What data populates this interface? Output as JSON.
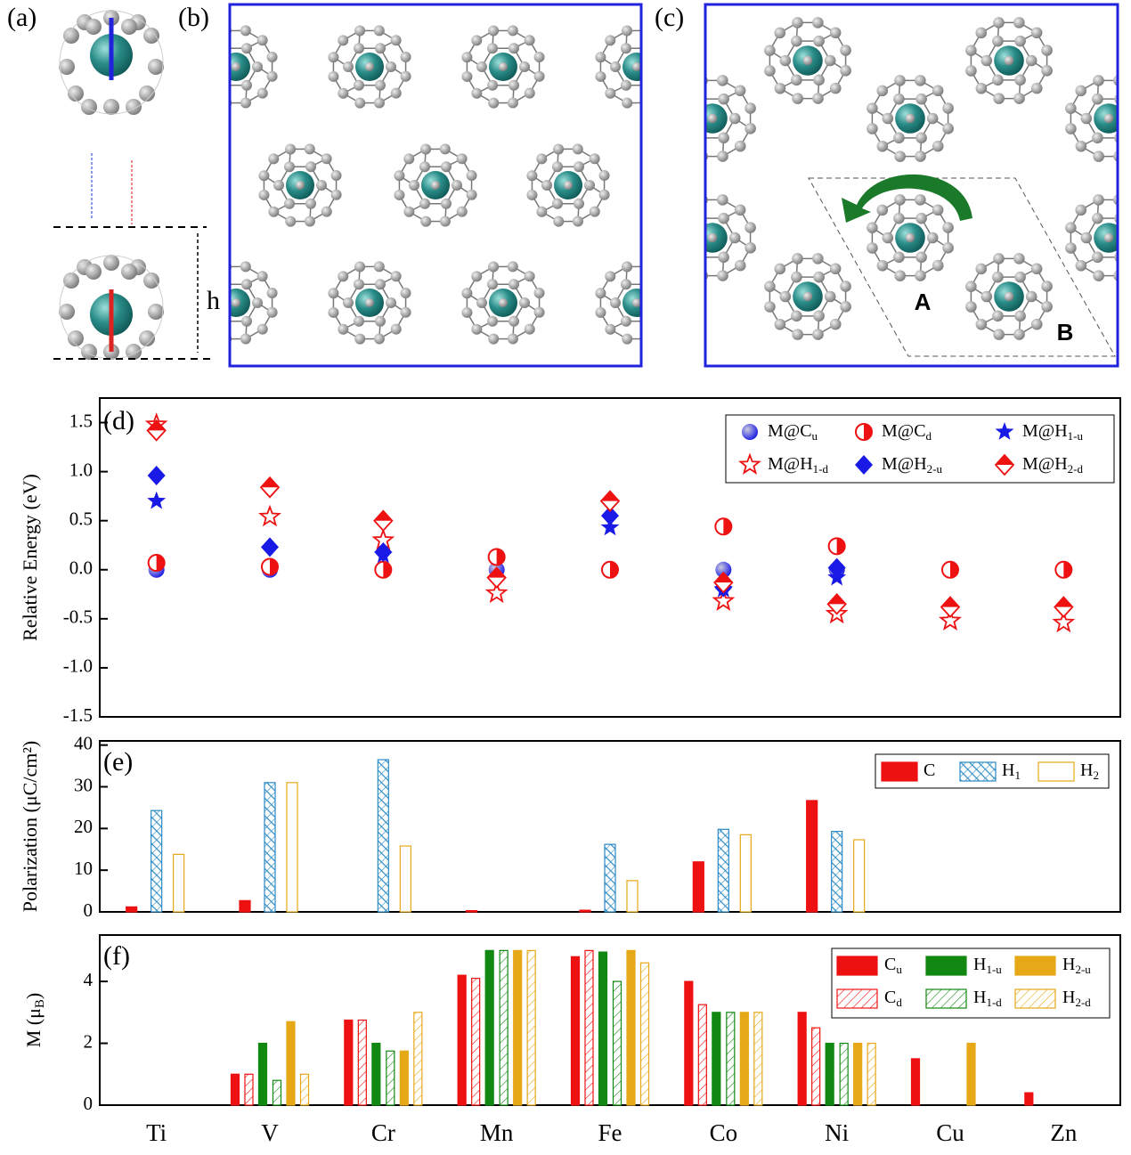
{
  "structures": {
    "labels": [
      "(a)",
      "(b)",
      "(c)"
    ],
    "height_label": "h",
    "site_labels": [
      "A",
      "B"
    ]
  },
  "chart_data": [
    {
      "type": "scatter",
      "panel_label": "(d)",
      "ylabel": "Relative Energy (eV)",
      "ylim": [
        -1.5,
        1.75
      ],
      "yticks": [
        -1.5,
        {
          "value": -1,
          "label": "-1.0"
        },
        -0.5,
        {
          "value": 0,
          "label": "0.0"
        },
        0.5,
        {
          "value": 1,
          "label": "1.0"
        },
        1.5
      ],
      "series": [
        {
          "name": "M@C",
          "subscript": "u",
          "color": "#1a1ae6",
          "marker": "sphere",
          "values": [
            0,
            0,
            null,
            0,
            null,
            0,
            0,
            null,
            null
          ]
        },
        {
          "name": "M@C",
          "subscript": "d",
          "color": "#ee1111",
          "marker": "half-circle",
          "values": [
            0.07,
            0.03,
            0,
            0.13,
            0,
            0.44,
            0.24,
            0,
            0
          ]
        },
        {
          "name": "M@H",
          "subscript": "1-u",
          "color": "#1a1ae6",
          "marker": "star",
          "values": [
            0.7,
            null,
            0.15,
            null,
            0.43,
            -0.2,
            -0.08,
            null,
            null
          ]
        },
        {
          "name": "M@H",
          "subscript": "1-d",
          "color": "#ee1111",
          "marker": "open-star",
          "values": [
            1.48,
            0.54,
            0.3,
            -0.24,
            null,
            -0.32,
            -0.45,
            -0.52,
            -0.54
          ]
        },
        {
          "name": "M@H",
          "subscript": "2-u",
          "color": "#1a1ae6",
          "marker": "diamond",
          "values": [
            0.96,
            0.23,
            0.18,
            null,
            0.55,
            -0.18,
            0.02,
            null,
            null
          ]
        },
        {
          "name": "M@H",
          "subscript": "2-d",
          "color": "#ee1111",
          "marker": "half-diamond",
          "values": [
            1.42,
            0.84,
            0.5,
            -0.08,
            0.7,
            -0.13,
            -0.35,
            -0.38,
            -0.38
          ]
        }
      ]
    },
    {
      "type": "bar",
      "panel_label": "(e)",
      "ylabel": "Polarization (μC/cm²)",
      "ylim": [
        0,
        41
      ],
      "yticks": [
        0,
        10,
        20,
        30,
        40
      ],
      "series": [
        {
          "name": "C",
          "color": "#ee1111",
          "style": "solid",
          "values": [
            1.2,
            2.7,
            0,
            0.3,
            0.4,
            12,
            26.7,
            0,
            0
          ]
        },
        {
          "name": "H",
          "subscript": "1",
          "color": "#2b8ac4",
          "style": "crosshatch",
          "values": [
            24.3,
            31,
            36.5,
            0,
            16.2,
            19.8,
            19.3,
            0,
            0
          ]
        },
        {
          "name": "H",
          "subscript": "2",
          "color": "#e6a817",
          "style": "outline",
          "values": [
            13.8,
            31,
            15.8,
            0,
            7.5,
            18.5,
            17.3,
            0,
            0
          ]
        }
      ]
    },
    {
      "type": "bar",
      "panel_label": "(f)",
      "ylabel_parts": [
        "M (μ",
        "B",
        ")"
      ],
      "categories": [
        "Ti",
        "V",
        "Cr",
        "Mn",
        "Fe",
        "Co",
        "Ni",
        "Cu",
        "Zn"
      ],
      "ylim": [
        0,
        5.5
      ],
      "yticks": [
        0,
        2,
        4
      ],
      "series": [
        {
          "name": "C",
          "subscript": "u",
          "color": "#ee1111",
          "style": "solid",
          "values": [
            0,
            1,
            2.75,
            4.2,
            4.8,
            4,
            3,
            1.5,
            0.4
          ]
        },
        {
          "name": "C",
          "subscript": "d",
          "color": "#ee1111",
          "style": "hatch",
          "values": [
            0,
            1,
            2.75,
            4.1,
            5,
            3.25,
            2.5,
            0,
            0
          ]
        },
        {
          "name": "H",
          "subscript": "1-u",
          "color": "#118811",
          "style": "solid",
          "values": [
            0,
            2,
            2,
            5,
            4.95,
            3,
            2,
            0,
            0
          ]
        },
        {
          "name": "H",
          "subscript": "1-d",
          "color": "#118811",
          "style": "hatch",
          "values": [
            0,
            0.8,
            1.75,
            5,
            4,
            3,
            2,
            0,
            0
          ]
        },
        {
          "name": "H",
          "subscript": "2-u",
          "color": "#e6a817",
          "style": "solid",
          "values": [
            0,
            2.7,
            1.75,
            5,
            5,
            3,
            2,
            2,
            0
          ]
        },
        {
          "name": "H",
          "subscript": "2-d",
          "color": "#e6a817",
          "style": "hatch",
          "values": [
            0,
            1,
            3,
            5,
            4.6,
            3,
            2,
            0,
            0
          ]
        }
      ]
    }
  ]
}
